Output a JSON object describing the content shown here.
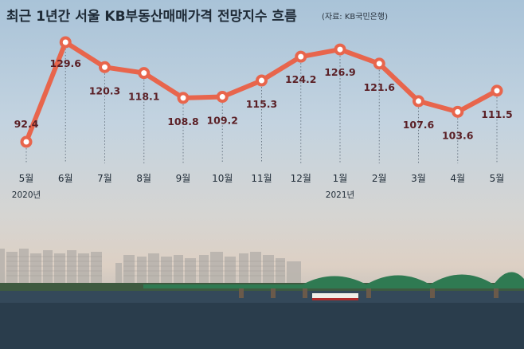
{
  "title": "최근 1년간 서울 KB부동산매매가격 전망지수 흐름",
  "source": "(자료: KB국민은행)",
  "colors": {
    "line": "#e8654c",
    "marker_fill": "#ffffff",
    "label": "#5a1f25",
    "water": "#2f4353",
    "bridge": "#2f7a52"
  },
  "chart_data": {
    "type": "line",
    "title": "최근 1년간 서울 KB부동산매매가격 전망지수 흐름",
    "categories": [
      "5월",
      "6월",
      "7월",
      "8월",
      "9월",
      "10월",
      "11월",
      "12월",
      "1월",
      "2월",
      "3월",
      "4월",
      "5월"
    ],
    "year_labels": [
      {
        "index": 0,
        "label": "2020년"
      },
      {
        "index": 8,
        "label": "2021년"
      }
    ],
    "series": [
      {
        "values": [
          92.4,
          129.6,
          120.3,
          118.1,
          108.8,
          109.2,
          115.3,
          124.2,
          126.9,
          121.6,
          107.6,
          103.6,
          111.5
        ]
      }
    ],
    "value_labels": [
      "92.4",
      "129.6",
      "120.3",
      "118.1",
      "108.8",
      "109.2",
      "115.3",
      "124.2",
      "126.9",
      "121.6",
      "107.6",
      "103.6",
      "111.5"
    ],
    "ylim": [
      90,
      131
    ],
    "grid": "vertical dotted guides from points to axis",
    "legend": "none"
  }
}
